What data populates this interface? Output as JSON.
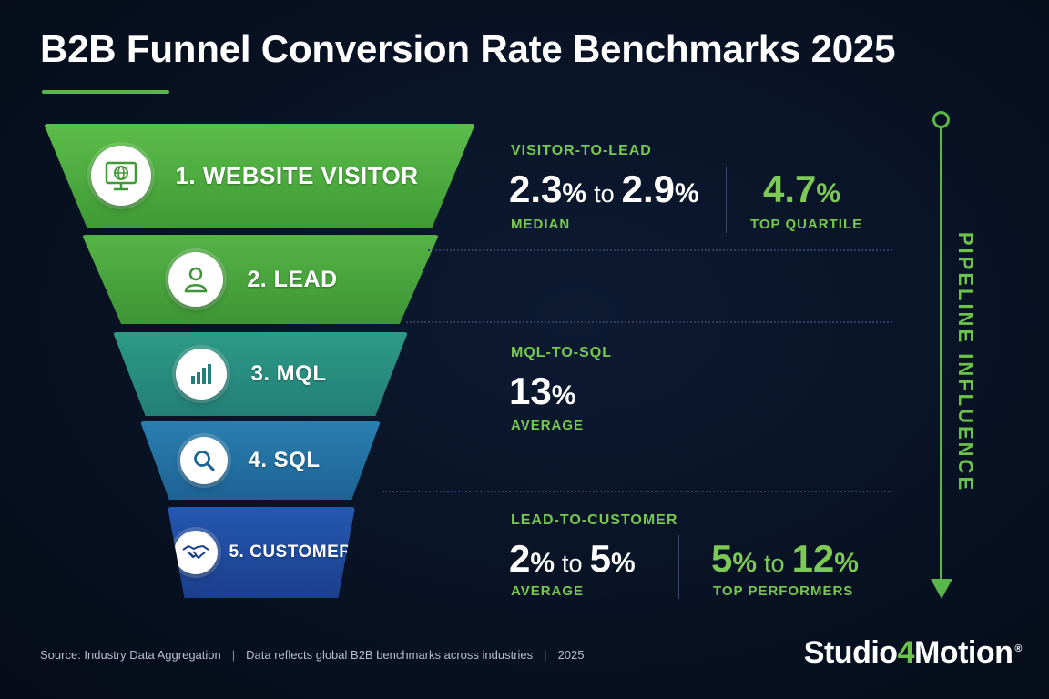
{
  "title": "B2B Funnel Conversion Rate Benchmarks 2025",
  "colors": {
    "accent": "#5ab54b",
    "accent_text": "#78c850",
    "background": "#07101f"
  },
  "stages": [
    {
      "label": "1. WEBSITE VISITOR",
      "icon": "monitor-globe-icon",
      "color": "#4da83f"
    },
    {
      "label": "2. LEAD",
      "icon": "person-icon",
      "color": "#4ea542"
    },
    {
      "label": "3. MQL",
      "icon": "bar-chart-icon",
      "color": "#2b8f84"
    },
    {
      "label": "4. SQL",
      "icon": "magnifier-icon",
      "color": "#1f6f9a"
    },
    {
      "label": "5. CUSTOMER",
      "icon": "handshake-icon",
      "color": "#1c4a9a"
    }
  ],
  "metrics": {
    "visitor_to_lead": {
      "label": "VISITOR-TO-LEAD",
      "median_low": "2.3",
      "median_high": "2.9",
      "median_caption": "MEDIAN",
      "top": "4.7",
      "top_caption": "TOP QUARTILE"
    },
    "mql_to_sql": {
      "label": "MQL-TO-SQL",
      "value": "13",
      "caption": "AVERAGE"
    },
    "lead_to_customer": {
      "label": "LEAD-TO-CUSTOMER",
      "avg_low": "2",
      "avg_high": "5",
      "avg_caption": "AVERAGE",
      "top_low": "5",
      "top_high": "12",
      "top_caption": "TOP PERFORMERS"
    },
    "percent": "%",
    "to": "to"
  },
  "pipeline_label": "PIPELINE INFLUENCE",
  "footer": {
    "source": "Source: Industry Data Aggregation",
    "note": "Data reflects global B2B benchmarks across industries",
    "year": "2025"
  },
  "brand": {
    "part1": "Studio",
    "part2": "4",
    "part3": "Motion",
    "reg": "®"
  }
}
